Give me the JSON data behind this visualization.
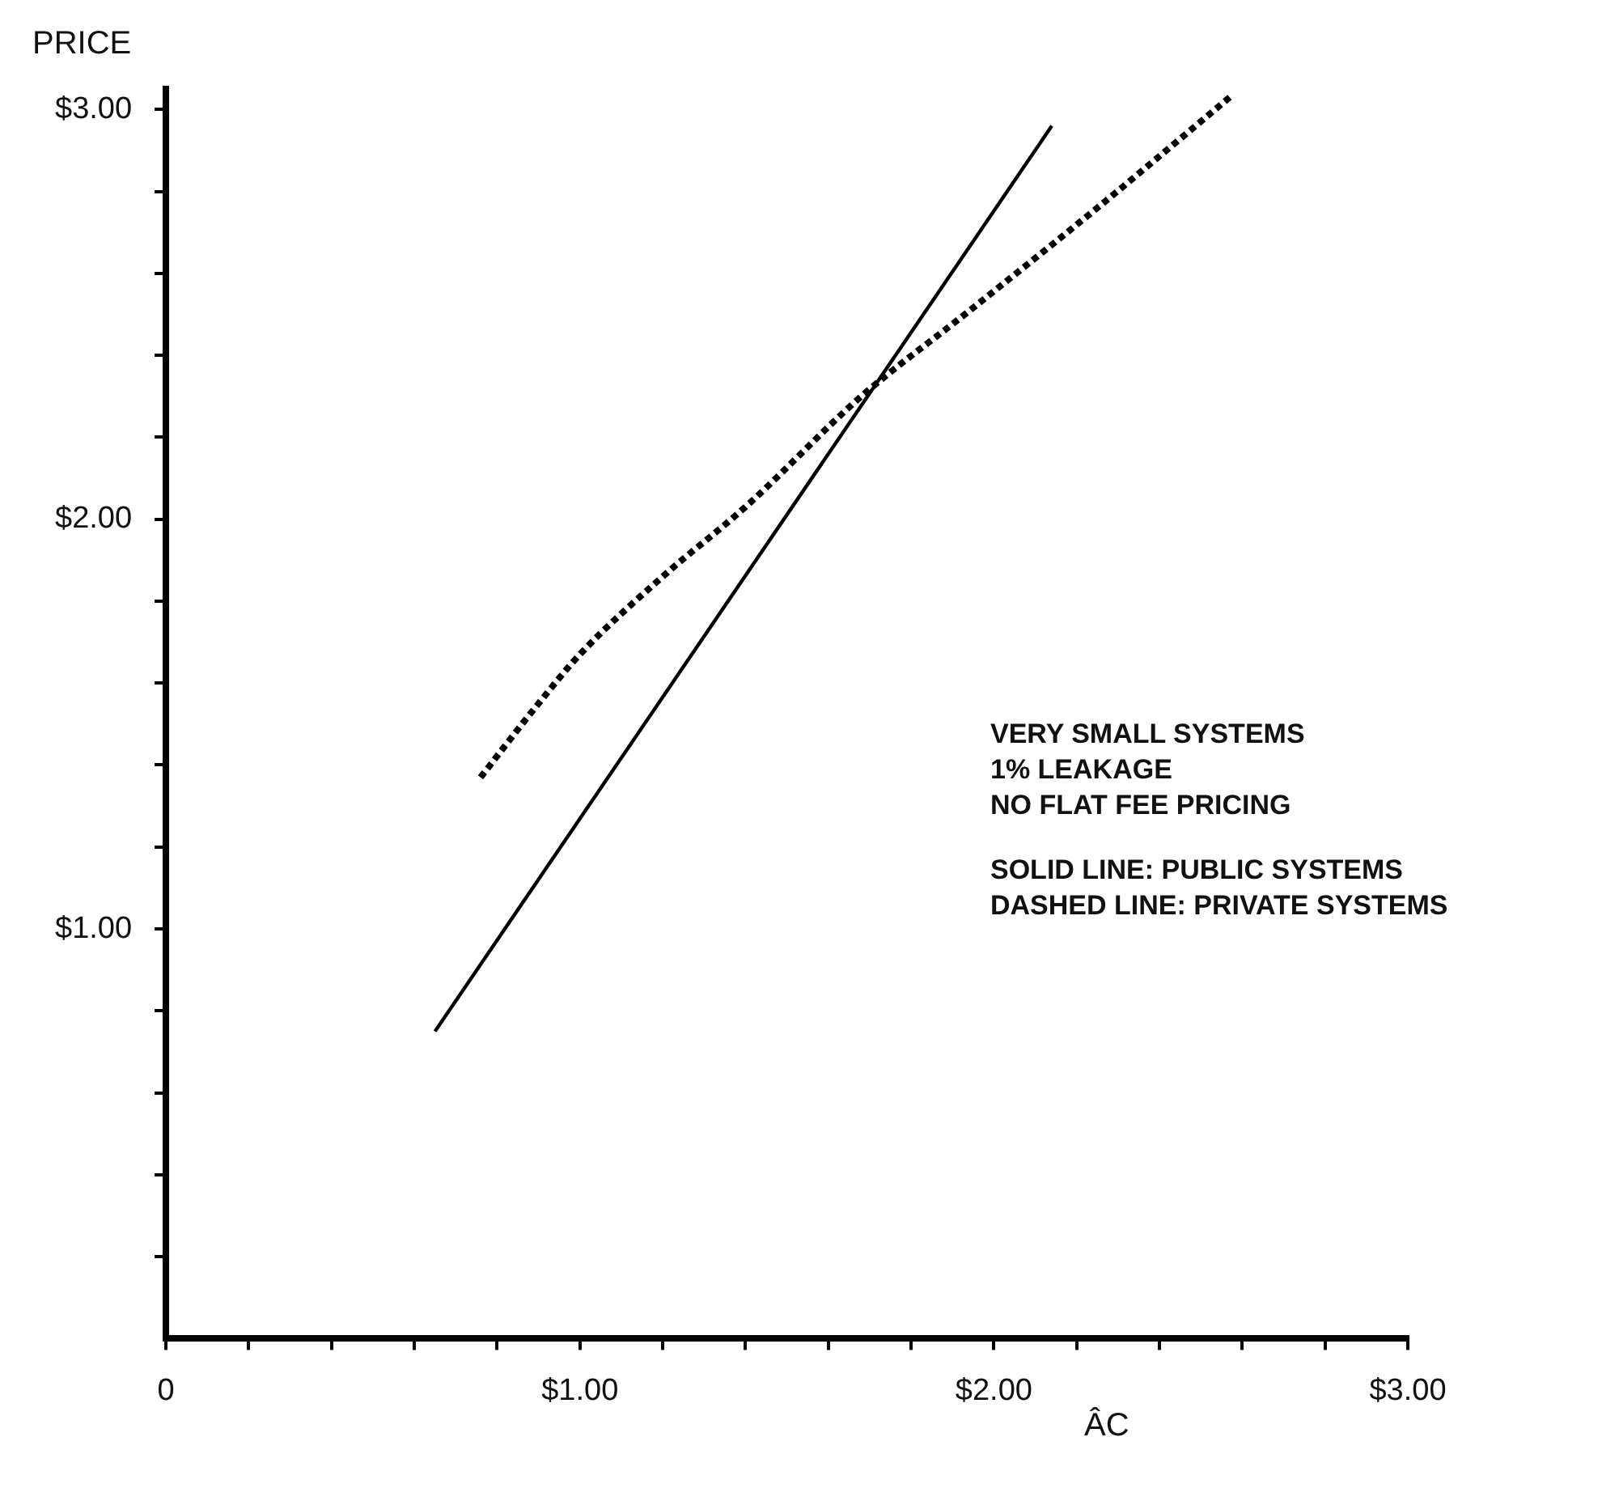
{
  "chart_data": {
    "type": "line",
    "ylabel": "PRICE",
    "xlabel": "ÂC",
    "xlim": [
      0,
      3.0
    ],
    "ylim": [
      0,
      3.05
    ],
    "xticks": [
      {
        "value": 0,
        "label": "0"
      },
      {
        "value": 0.2,
        "label": null
      },
      {
        "value": 0.4,
        "label": null
      },
      {
        "value": 0.6,
        "label": null
      },
      {
        "value": 0.8,
        "label": null
      },
      {
        "value": 1,
        "label": "$1.00"
      },
      {
        "value": 1.2,
        "label": null
      },
      {
        "value": 1.4,
        "label": null
      },
      {
        "value": 1.6,
        "label": null
      },
      {
        "value": 1.8,
        "label": null
      },
      {
        "value": 2,
        "label": "$2.00"
      },
      {
        "value": 2.2,
        "label": null
      },
      {
        "value": 2.4,
        "label": null
      },
      {
        "value": 2.6,
        "label": null
      },
      {
        "value": 2.8,
        "label": null
      },
      {
        "value": 3,
        "label": "$3.00"
      }
    ],
    "yticks": [
      {
        "value": 0.2,
        "label": null
      },
      {
        "value": 0.4,
        "label": null
      },
      {
        "value": 0.6,
        "label": null
      },
      {
        "value": 0.8,
        "label": null
      },
      {
        "value": 1,
        "label": "$1.00"
      },
      {
        "value": 1.2,
        "label": null
      },
      {
        "value": 1.4,
        "label": null
      },
      {
        "value": 1.6,
        "label": null
      },
      {
        "value": 1.8,
        "label": null
      },
      {
        "value": 2,
        "label": "$2.00"
      },
      {
        "value": 2.2,
        "label": null
      },
      {
        "value": 2.4,
        "label": null
      },
      {
        "value": 2.6,
        "label": null
      },
      {
        "value": 2.8,
        "label": null
      },
      {
        "value": 3,
        "label": "$3.00"
      }
    ],
    "grid": false,
    "legend": false,
    "marker": "none",
    "series": [
      {
        "color": "#000000",
        "line_style": "solid",
        "x": [
          0.65,
          2.14
        ],
        "values": [
          0.75,
          2.96
        ]
      },
      {
        "color": "#000000",
        "line_style": "dotted",
        "x": [
          0.76,
          0.9,
          1.0,
          1.2,
          1.4,
          1.68,
          1.93,
          2.25,
          2.57
        ],
        "values": [
          1.37,
          1.55,
          1.67,
          1.86,
          2.03,
          2.3,
          2.5,
          2.76,
          3.03
        ]
      }
    ],
    "annotations": [
      "VERY SMALL SYSTEMS",
      "1% LEAKAGE",
      "NO FLAT FEE PRICING",
      "SOLID LINE: PUBLIC SYSTEMS",
      "DASHED LINE: PRIVATE SYSTEMS"
    ]
  }
}
